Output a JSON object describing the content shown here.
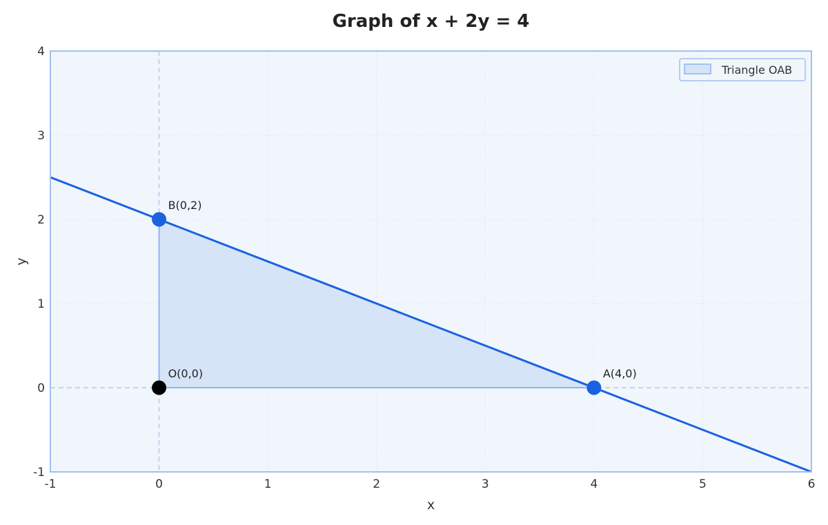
{
  "chart_data": {
    "type": "line",
    "title": "Graph of x + 2y = 4",
    "xlabel": "x",
    "ylabel": "y",
    "xlim": [
      -1,
      6
    ],
    "ylim": [
      -1,
      4
    ],
    "xticks": [
      -1,
      0,
      1,
      2,
      3,
      4,
      5,
      6
    ],
    "yticks": [
      -1,
      0,
      1,
      2,
      3,
      4
    ],
    "grid": true,
    "legend_position": "top-right",
    "line": {
      "equation": "x + 2y = 4",
      "x": [
        -1,
        6
      ],
      "y": [
        2.5,
        -1
      ],
      "color": "#1a62e0"
    },
    "polygon": {
      "name": "Triangle OAB",
      "vertices": [
        [
          0,
          0
        ],
        [
          4,
          0
        ],
        [
          0,
          2
        ]
      ],
      "fill": "#d6e4f8",
      "edge": "#8fb3ee"
    },
    "points": [
      {
        "label": "O(0,0)",
        "x": 0,
        "y": 0,
        "color": "#000000"
      },
      {
        "label": "A(4,0)",
        "x": 4,
        "y": 0,
        "color": "#1a62e0"
      },
      {
        "label": "B(0,2)",
        "x": 0,
        "y": 2,
        "color": "#1a62e0"
      }
    ],
    "colors": {
      "plot_background": "#f1f6fd",
      "frame": "#9fc0f2",
      "grid": "#dce6f3",
      "zero_axis": "#bfd6ee"
    }
  }
}
